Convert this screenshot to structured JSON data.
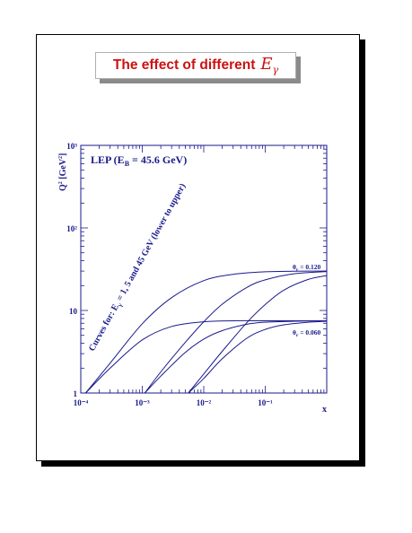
{
  "slide": {
    "title_text": "The effect of different",
    "title_symbol": "E",
    "title_symbol_sub": "γ",
    "title_color": "#cc1111"
  },
  "chart_data": {
    "type": "line",
    "xscale": "log",
    "yscale": "log",
    "xlim": [
      0.0001,
      1
    ],
    "ylim": [
      1,
      1000
    ],
    "xlabel": "x",
    "ylabel": "Q² [GeV²]",
    "x_ticks": [
      "10⁻⁴",
      "10⁻³",
      "10⁻²",
      "10⁻¹"
    ],
    "y_ticks": [
      "1",
      "10",
      "10²",
      "10³"
    ],
    "header_label": "LEP (E_B = 45.6 GeV)",
    "rotated_label": "Curves for: E_γ = 1, 5 and 45 GeV (lower to upper)",
    "annotations": [
      "θ_r = 0.120",
      "θ_r = 0.060"
    ],
    "line_color": "#1a1a8c",
    "series": [
      {
        "x": [
          0.00012,
          0.0003,
          0.001,
          0.003,
          0.01,
          0.03,
          0.1,
          0.3,
          1.0
        ],
        "y": [
          1.0,
          2.3,
          6.9,
          14.3,
          23.0,
          27.4,
          29.4,
          29.9,
          30.0
        ]
      },
      {
        "x": [
          0.0011,
          0.002,
          0.005,
          0.01,
          0.02,
          0.05,
          0.1,
          0.3,
          1.0
        ],
        "y": [
          1.0,
          1.8,
          4.1,
          7.3,
          11.9,
          19.0,
          23.5,
          27.9,
          29.6
        ]
      },
      {
        "x": [
          0.0056,
          0.01,
          0.02,
          0.05,
          0.1,
          0.2,
          0.5,
          1.0
        ],
        "y": [
          1.0,
          1.7,
          3.2,
          7.1,
          11.8,
          17.6,
          23.8,
          26.5
        ]
      },
      {
        "x": [
          0.00012,
          0.0003,
          0.001,
          0.003,
          0.01,
          0.03,
          0.1,
          0.3,
          1.0
        ],
        "y": [
          1.0,
          2.0,
          4.4,
          6.4,
          7.3,
          7.5,
          7.5,
          7.5,
          7.5
        ]
      },
      {
        "x": [
          0.0011,
          0.002,
          0.005,
          0.01,
          0.02,
          0.05,
          0.1,
          0.3,
          1.0
        ],
        "y": [
          1.0,
          1.6,
          3.1,
          4.5,
          5.7,
          6.8,
          7.2,
          7.4,
          7.5
        ]
      },
      {
        "x": [
          0.0056,
          0.01,
          0.02,
          0.05,
          0.1,
          0.2,
          0.5,
          1.0
        ],
        "y": [
          1.0,
          1.5,
          2.6,
          4.6,
          5.9,
          6.7,
          7.2,
          7.4
        ]
      }
    ]
  }
}
